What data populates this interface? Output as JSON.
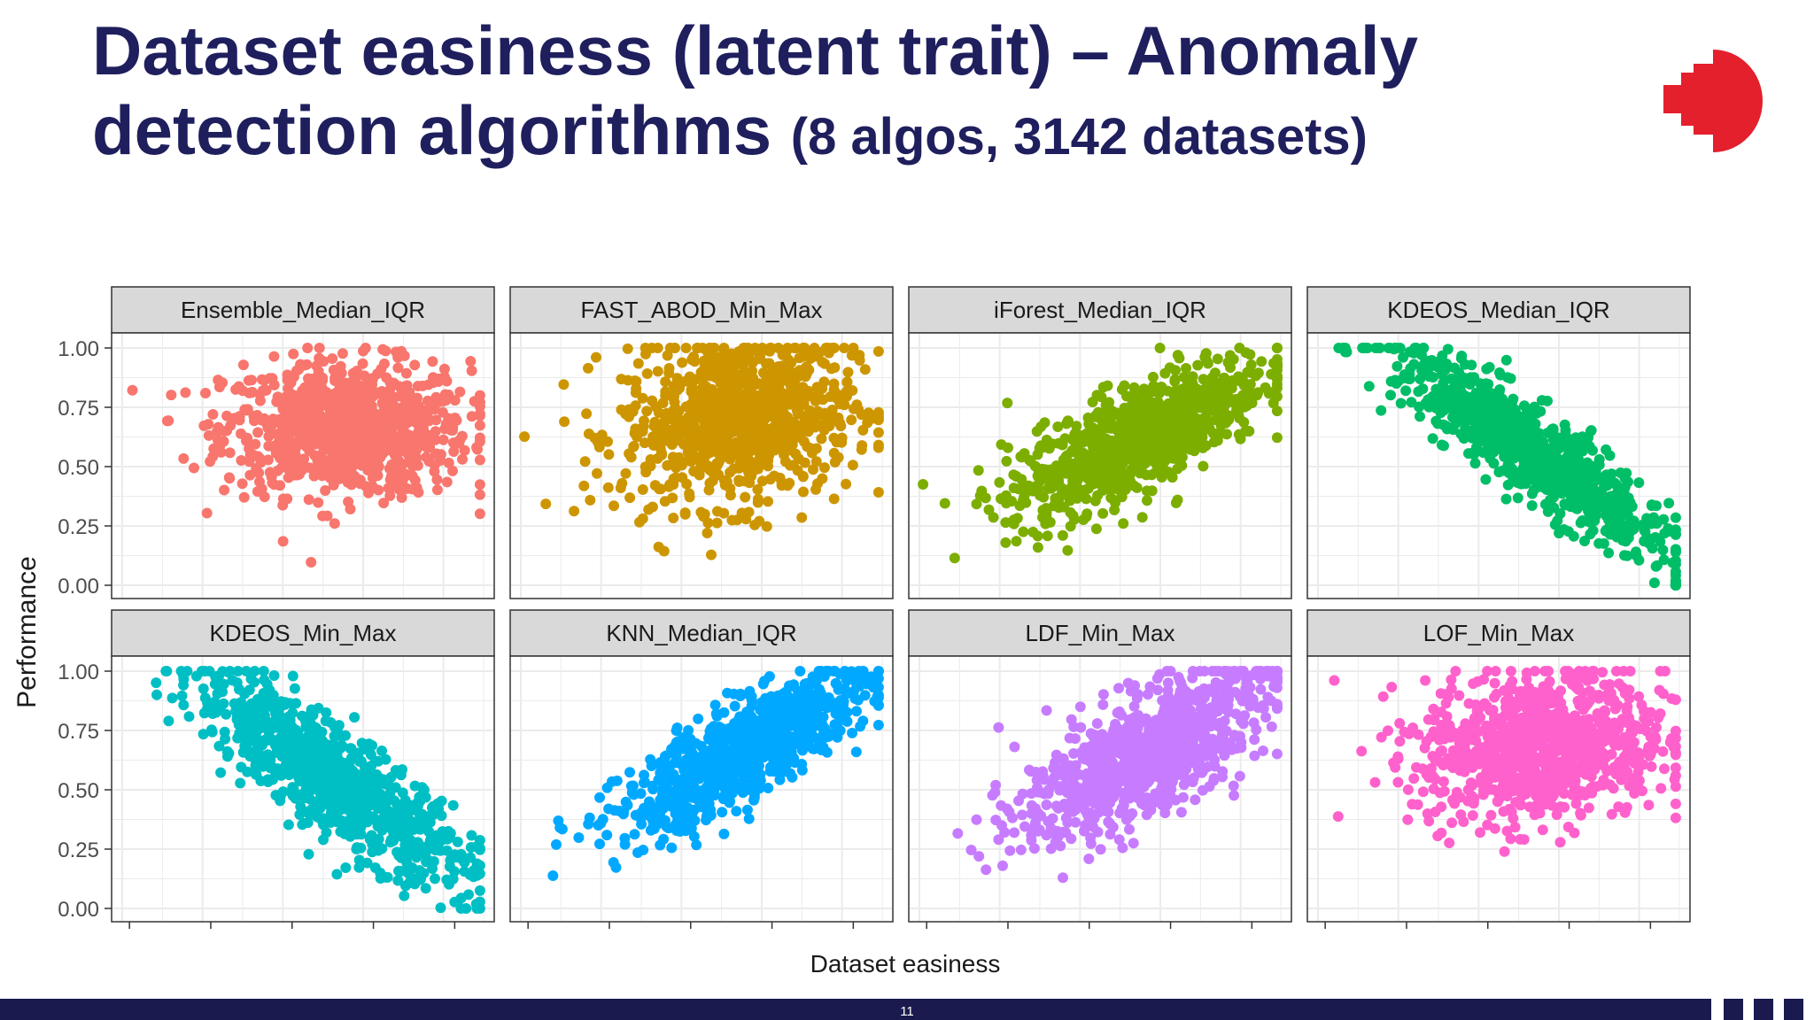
{
  "slide": {
    "title_line1": "Dataset easiness (latent trait) – Anomaly",
    "title_line2_main": "detection algorithms",
    "title_line2_sub": "(8 algos, 3142 datasets)",
    "page_number": "11"
  },
  "colors": {
    "title": "#1f1f5e",
    "logo": "#e3202c",
    "footer": "#1a1a4f",
    "panel_strip": "#d9d9d9",
    "panel_border": "#333333",
    "grid": "#ebebeb"
  },
  "logo": {
    "icon": "red-brand-logo-icon"
  },
  "chart_data": {
    "type": "scatter",
    "xlabel": "Dataset easiness",
    "ylabel": "Performance",
    "ylim": [
      0,
      1
    ],
    "yticks": [
      "0.00",
      "0.25",
      "0.50",
      "0.75",
      "1.00"
    ],
    "xlim": [
      0,
      1
    ],
    "grid": true,
    "layout": "facet grid, 2 rows × 4 columns",
    "panels": [
      {
        "name": "Ensemble_Median_IQR",
        "color": "#F8766D",
        "pattern": "blob",
        "cx": 0.62,
        "cy": 0.66,
        "sx": 0.17,
        "sy": 0.14,
        "rho": 0.0
      },
      {
        "name": "FAST_ABOD_Min_Max",
        "color": "#CD9600",
        "pattern": "blob",
        "cx": 0.6,
        "cy": 0.7,
        "sx": 0.16,
        "sy": 0.18,
        "rho": 0.15
      },
      {
        "name": "iForest_Median_IQR",
        "color": "#7CAE00",
        "pattern": "positive",
        "cx": 0.6,
        "cy": 0.62,
        "sx": 0.18,
        "sy": 0.17,
        "rho": 0.75
      },
      {
        "name": "KDEOS_Median_IQR",
        "color": "#00BE67",
        "pattern": "negative",
        "cx": 0.6,
        "cy": 0.55,
        "sx": 0.19,
        "sy": 0.22,
        "rho": -0.9
      },
      {
        "name": "KDEOS_Min_Max",
        "color": "#00BFC4",
        "pattern": "negative",
        "cx": 0.58,
        "cy": 0.55,
        "sx": 0.19,
        "sy": 0.22,
        "rho": -0.85
      },
      {
        "name": "KNN_Median_IQR",
        "color": "#00A9FF",
        "pattern": "positive",
        "cx": 0.62,
        "cy": 0.66,
        "sx": 0.17,
        "sy": 0.17,
        "rho": 0.8
      },
      {
        "name": "LDF_Min_Max",
        "color": "#C77CFF",
        "pattern": "positive",
        "cx": 0.62,
        "cy": 0.65,
        "sx": 0.17,
        "sy": 0.18,
        "rho": 0.7
      },
      {
        "name": "LOF_Min_Max",
        "color": "#FF61CC",
        "pattern": "blob",
        "cx": 0.62,
        "cy": 0.68,
        "sx": 0.17,
        "sy": 0.16,
        "rho": 0.1
      }
    ]
  }
}
